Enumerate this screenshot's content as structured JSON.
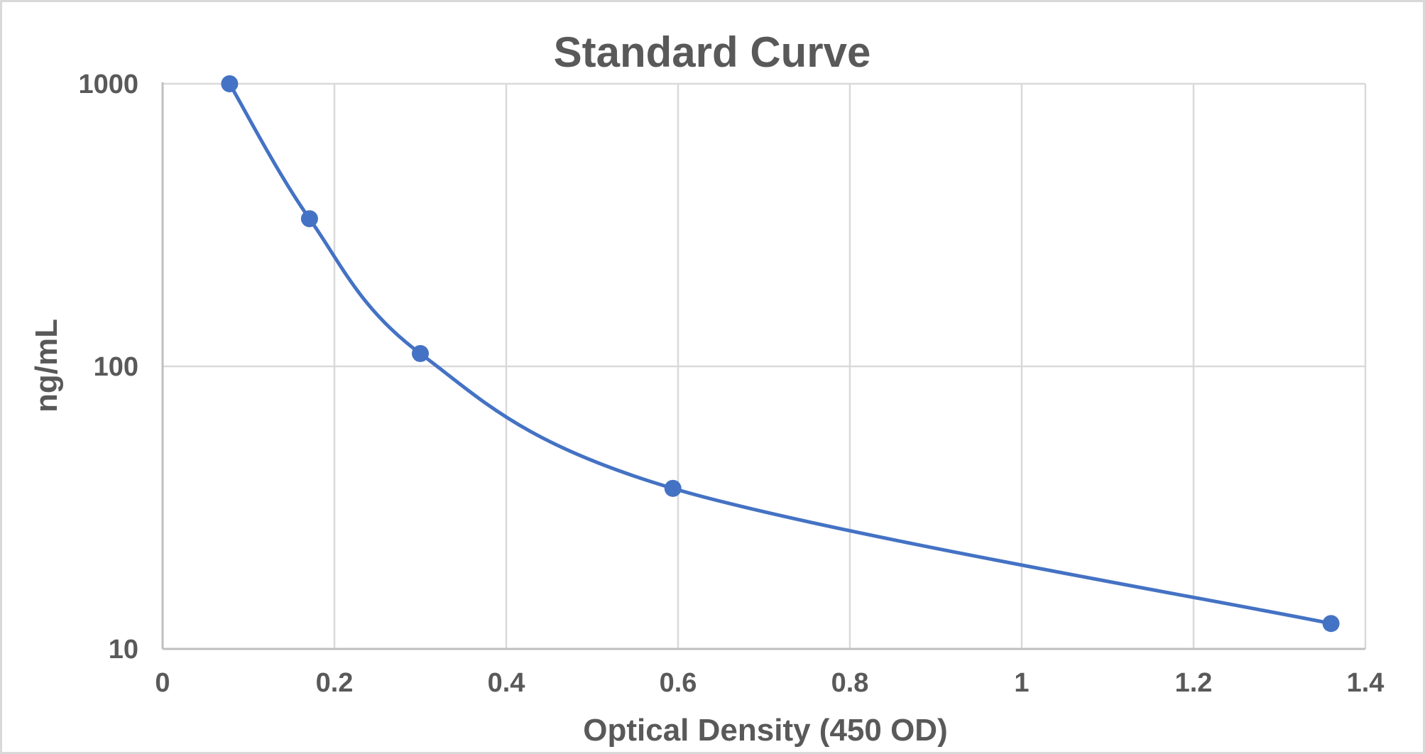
{
  "chart_data": {
    "type": "scatter",
    "title": "Standard Curve",
    "xlabel": "Optical Density (450 OD)",
    "ylabel": "ng/mL",
    "xlim": [
      0,
      1.4
    ],
    "ylim": [
      10,
      1000
    ],
    "yscale": "log",
    "x_ticks": [
      "0",
      "0.2",
      "0.4",
      "0.6",
      "0.8",
      "1",
      "1.2",
      "1.4"
    ],
    "y_ticks": [
      "10",
      "100",
      "1000"
    ],
    "grid": true,
    "line_style": "smooth",
    "legend": false,
    "series": [
      {
        "color": "#4472c4",
        "points": [
          {
            "x": 0.078,
            "y": 1000
          },
          {
            "x": 0.171,
            "y": 333
          },
          {
            "x": 0.3,
            "y": 111
          },
          {
            "x": 0.594,
            "y": 37
          },
          {
            "x": 1.36,
            "y": 12.3
          }
        ]
      }
    ]
  }
}
